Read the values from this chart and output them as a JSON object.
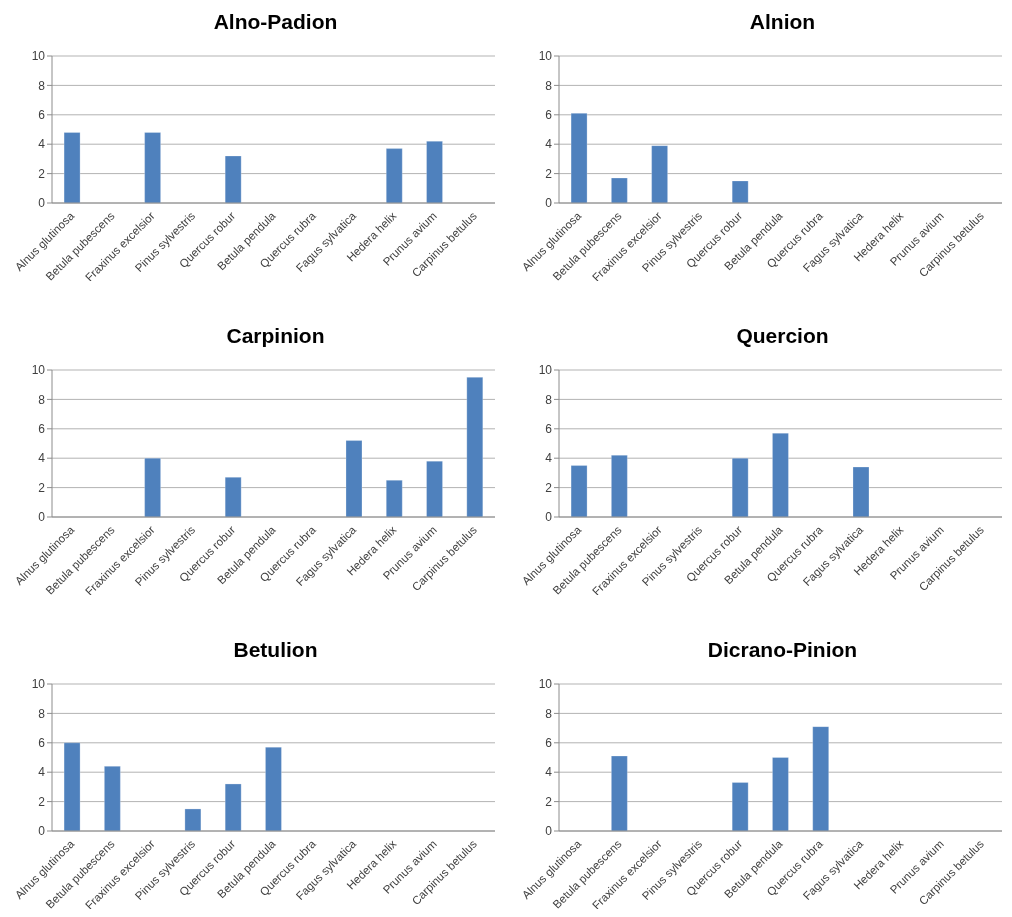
{
  "chart_data": [
    {
      "type": "bar",
      "title": "Alno-Padion",
      "categories": [
        "Alnus glutinosa",
        "Betula pubescens",
        "Fraxinus excelsior",
        "Pinus sylvestris",
        "Quercus robur",
        "Betula pendula",
        "Quercus rubra",
        "Fagus sylvatica",
        "Hedera helix",
        "Prunus avium",
        "Carpinus betulus"
      ],
      "values": [
        4.8,
        null,
        4.8,
        null,
        3.2,
        null,
        null,
        null,
        3.7,
        4.2,
        null
      ],
      "color": "#4f81bd",
      "ylim": [
        0,
        10
      ],
      "yticks": [
        0,
        2,
        4,
        6,
        8,
        10
      ],
      "grid": "y"
    },
    {
      "type": "bar",
      "title": "Alnion",
      "categories": [
        "Alnus glutinosa",
        "Betula pubescens",
        "Fraxinus excelsior",
        "Pinus sylvestris",
        "Quercus robur",
        "Betula pendula",
        "Quercus rubra",
        "Fagus sylvatica",
        "Hedera helix",
        "Prunus avium",
        "Carpinus betulus"
      ],
      "values": [
        6.1,
        1.7,
        3.9,
        null,
        1.5,
        null,
        null,
        null,
        null,
        null,
        null
      ],
      "color": "#4f81bd",
      "ylim": [
        0,
        10
      ],
      "yticks": [
        0,
        2,
        4,
        6,
        8,
        10
      ],
      "grid": "y"
    },
    {
      "type": "bar",
      "title": "Carpinion",
      "categories": [
        "Alnus glutinosa",
        "Betula pubescens",
        "Fraxinus excelsior",
        "Pinus sylvestris",
        "Quercus robur",
        "Betula pendula",
        "Quercus rubra",
        "Fagus sylvatica",
        "Hedera helix",
        "Prunus avium",
        "Carpinus betulus"
      ],
      "values": [
        null,
        null,
        4.0,
        null,
        2.7,
        null,
        null,
        5.2,
        2.5,
        3.8,
        9.5
      ],
      "color": "#4f81bd",
      "ylim": [
        0,
        10
      ],
      "yticks": [
        0,
        2,
        4,
        6,
        8,
        10
      ],
      "grid": "y"
    },
    {
      "type": "bar",
      "title": "Quercion",
      "categories": [
        "Alnus glutinosa",
        "Betula pubescens",
        "Fraxinus excelsior",
        "Pinus sylvestris",
        "Quercus robur",
        "Betula pendula",
        "Quercus rubra",
        "Fagus sylvatica",
        "Hedera helix",
        "Prunus avium",
        "Carpinus betulus"
      ],
      "values": [
        3.5,
        4.2,
        null,
        null,
        4.0,
        5.7,
        null,
        3.4,
        null,
        null,
        null
      ],
      "color": "#4f81bd",
      "ylim": [
        0,
        10
      ],
      "yticks": [
        0,
        2,
        4,
        6,
        8,
        10
      ],
      "grid": "y"
    },
    {
      "type": "bar",
      "title": "Betulion",
      "categories": [
        "Alnus glutinosa",
        "Betula pubescens",
        "Fraxinus excelsior",
        "Pinus sylvestris",
        "Quercus robur",
        "Betula pendula",
        "Quercus rubra",
        "Fagus sylvatica",
        "Hedera helix",
        "Prunus avium",
        "Carpinus betulus"
      ],
      "values": [
        6.0,
        4.4,
        null,
        1.5,
        3.2,
        5.7,
        null,
        null,
        null,
        null,
        null
      ],
      "color": "#4f81bd",
      "ylim": [
        0,
        10
      ],
      "yticks": [
        0,
        2,
        4,
        6,
        8,
        10
      ],
      "grid": "y"
    },
    {
      "type": "bar",
      "title": "Dicrano-Pinion",
      "categories": [
        "Alnus glutinosa",
        "Betula pubescens",
        "Fraxinus excelsior",
        "Pinus sylvestris",
        "Quercus robur",
        "Betula pendula",
        "Quercus rubra",
        "Fagus sylvatica",
        "Hedera helix",
        "Prunus avium",
        "Carpinus betulus"
      ],
      "values": [
        null,
        5.1,
        null,
        null,
        3.3,
        5.0,
        7.1,
        null,
        null,
        null,
        null
      ],
      "color": "#4f81bd",
      "ylim": [
        0,
        10
      ],
      "yticks": [
        0,
        2,
        4,
        6,
        8,
        10
      ],
      "grid": "y"
    }
  ]
}
